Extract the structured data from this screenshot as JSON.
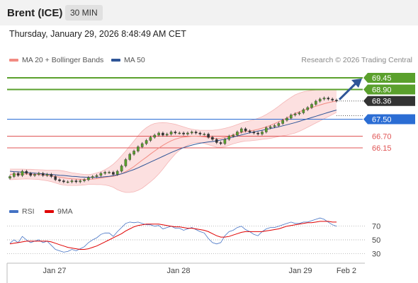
{
  "header": {
    "symbol": "Brent (ICE)",
    "timeframe": "30 MIN"
  },
  "datetime": "Thursday, January 29, 2026 8:48:49 AM CET",
  "legend": [
    {
      "label": "MA 20 + Bollinger Bands",
      "color": "#f28b82"
    },
    {
      "label": "MA 50",
      "color": "#2f5597"
    }
  ],
  "attribution": "Research © 2026 Trading Central",
  "rsi_legend": [
    {
      "label": "RSI",
      "color": "#4472c4"
    },
    {
      "label": "9MA",
      "color": "#e00000"
    }
  ],
  "colors": {
    "resistance": "#5aa02c",
    "pivot": "#2b6dd4",
    "support": "#e05555",
    "last": "#333333",
    "arrow": "#2f5597"
  },
  "chart_data": [
    {
      "type": "candlestick",
      "title": "Brent (ICE)",
      "x_tick_labels": [
        "Jan 27",
        "Jan 28",
        "Jan 29",
        "Feb 2"
      ],
      "ylim": [
        63.55,
        69.95
      ],
      "close_values": [
        64.8,
        64.95,
        64.85,
        65.05,
        64.95,
        64.85,
        64.9,
        64.95,
        64.85,
        64.9,
        64.8,
        64.65,
        64.6,
        64.55,
        64.55,
        64.6,
        64.55,
        64.6,
        64.65,
        64.75,
        64.8,
        64.85,
        64.95,
        65.0,
        65.0,
        64.9,
        65.05,
        65.3,
        65.6,
        65.85,
        66.0,
        66.2,
        66.35,
        66.5,
        66.65,
        66.75,
        66.85,
        66.75,
        66.8,
        66.9,
        66.85,
        66.85,
        66.8,
        66.85,
        66.9,
        66.85,
        66.8,
        66.8,
        66.65,
        66.55,
        66.4,
        66.35,
        66.55,
        66.7,
        66.75,
        66.9,
        67.05,
        66.95,
        66.9,
        66.85,
        66.8,
        66.9,
        67.1,
        67.15,
        67.2,
        67.3,
        67.45,
        67.55,
        67.7,
        67.75,
        67.8,
        67.95,
        68.05,
        68.2,
        68.35,
        68.45,
        68.5,
        68.45,
        68.4,
        68.36
      ],
      "ma20_values": [
        64.9,
        64.91,
        64.91,
        64.92,
        64.92,
        64.91,
        64.9,
        64.89,
        64.87,
        64.85,
        64.83,
        64.8,
        64.77,
        64.74,
        64.71,
        64.69,
        64.68,
        64.67,
        64.66,
        64.67,
        64.68,
        64.7,
        64.73,
        64.76,
        64.79,
        64.81,
        64.86,
        64.93,
        65.03,
        65.14,
        65.27,
        65.42,
        65.57,
        65.71,
        65.86,
        66.0,
        66.14,
        66.27,
        66.38,
        66.48,
        66.56,
        66.62,
        66.66,
        66.68,
        66.7,
        66.7,
        66.69,
        66.67,
        66.64,
        66.61,
        66.59,
        66.6,
        66.64,
        66.7,
        66.76,
        66.82,
        66.88,
        66.92,
        66.95,
        66.98,
        67.02,
        67.08,
        67.14,
        67.21,
        67.29,
        67.38,
        67.47,
        67.56,
        67.66,
        67.77,
        67.85,
        67.92,
        67.99,
        68.05,
        68.11,
        68.17,
        68.23,
        68.28,
        68.32,
        68.36
      ],
      "bb_upper_values": [
        65.15,
        65.15,
        65.15,
        65.15,
        65.14,
        65.14,
        65.13,
        65.12,
        65.11,
        65.1,
        65.1,
        65.1,
        65.09,
        65.06,
        65.02,
        64.98,
        64.95,
        64.92,
        64.9,
        64.89,
        64.92,
        64.97,
        65.03,
        65.12,
        65.24,
        65.38,
        65.56,
        65.78,
        66.0,
        66.24,
        66.48,
        66.72,
        66.94,
        67.1,
        67.22,
        67.3,
        67.33,
        67.34,
        67.33,
        67.3,
        67.26,
        67.2,
        67.14,
        67.08,
        67.03,
        67.0,
        66.98,
        66.98,
        66.98,
        66.98,
        67.0,
        67.03,
        67.07,
        67.12,
        67.18,
        67.25,
        67.32,
        67.38,
        67.43,
        67.48,
        67.54,
        67.62,
        67.72,
        67.84,
        67.97,
        68.11,
        68.26,
        68.4,
        68.53,
        68.65,
        68.73,
        68.79,
        68.83,
        68.86,
        68.88,
        68.9,
        68.91,
        68.91,
        68.9,
        68.89
      ],
      "bb_lower_values": [
        64.65,
        64.66,
        64.67,
        64.68,
        64.69,
        64.68,
        64.67,
        64.66,
        64.63,
        64.6,
        64.56,
        64.5,
        64.44,
        64.4,
        64.38,
        64.38,
        64.38,
        64.39,
        64.4,
        64.43,
        64.43,
        64.42,
        64.42,
        64.4,
        64.36,
        64.29,
        64.18,
        64.1,
        64.05,
        64.05,
        64.08,
        64.15,
        64.25,
        64.4,
        64.55,
        64.72,
        64.92,
        65.15,
        65.4,
        65.64,
        65.86,
        66.04,
        66.18,
        66.28,
        66.36,
        66.4,
        66.4,
        66.36,
        66.3,
        66.24,
        66.18,
        66.17,
        66.2,
        66.27,
        66.34,
        66.39,
        66.44,
        66.47,
        66.48,
        66.5,
        66.52,
        66.55,
        66.57,
        66.6,
        66.64,
        66.68,
        66.72,
        66.75,
        66.8,
        66.85,
        66.93,
        67.02,
        67.12,
        67.22,
        67.32,
        67.42,
        67.52,
        67.62,
        67.72,
        67.82
      ],
      "ma50_values": [
        65.05,
        65.03,
        65.02,
        65.0,
        64.99,
        64.97,
        64.96,
        64.94,
        64.93,
        64.91,
        64.9,
        64.88,
        64.86,
        64.85,
        64.83,
        64.81,
        64.8,
        64.78,
        64.77,
        64.76,
        64.76,
        64.76,
        64.77,
        64.79,
        64.81,
        64.84,
        64.88,
        64.93,
        64.99,
        65.06,
        65.13,
        65.21,
        65.3,
        65.39,
        65.48,
        65.57,
        65.66,
        65.75,
        65.84,
        65.93,
        66.01,
        66.09,
        66.16,
        66.22,
        66.28,
        66.33,
        66.37,
        66.4,
        66.43,
        66.45,
        66.48,
        66.52,
        66.56,
        66.61,
        66.66,
        66.71,
        66.76,
        66.81,
        66.86,
        66.9,
        66.94,
        66.98,
        67.02,
        67.06,
        67.1,
        67.14,
        67.19,
        67.24,
        67.29,
        67.34,
        67.4,
        67.46,
        67.52,
        67.58,
        67.64,
        67.7,
        67.76,
        67.82,
        67.88,
        67.93
      ],
      "levels": [
        {
          "label": "69.45",
          "value": 69.45,
          "kind": "resistance"
        },
        {
          "label": "68.90",
          "value": 68.9,
          "kind": "resistance"
        },
        {
          "label": "68.36",
          "value": 68.36,
          "kind": "last"
        },
        {
          "label": "67.50",
          "value": 67.5,
          "kind": "pivot"
        },
        {
          "label": "66.70",
          "value": 66.7,
          "kind": "support"
        },
        {
          "label": "66.15",
          "value": 66.15,
          "kind": "support"
        }
      ],
      "forecast_arrow": {
        "from": 68.36,
        "to": 69.45
      }
    },
    {
      "type": "line",
      "y_ticks": [
        70,
        50,
        30
      ],
      "ylim": [
        20,
        80
      ],
      "series": [
        {
          "name": "RSI",
          "values": [
            45,
            50,
            46,
            55,
            50,
            46,
            48,
            50,
            46,
            48,
            42,
            36,
            34,
            32,
            33,
            36,
            34,
            37,
            40,
            46,
            50,
            53,
            58,
            60,
            60,
            55,
            62,
            68,
            74,
            76,
            75,
            76,
            74,
            72,
            72,
            70,
            71,
            66,
            68,
            70,
            67,
            67,
            64,
            66,
            68,
            65,
            62,
            60,
            52,
            46,
            44,
            46,
            56,
            62,
            64,
            68,
            70,
            65,
            62,
            58,
            56,
            62,
            66,
            68,
            68,
            70,
            72,
            74,
            76,
            74,
            74,
            76,
            76,
            78,
            80,
            82,
            80,
            76,
            72,
            70
          ]
        },
        {
          "name": "9MA",
          "values": [
            44,
            45,
            46,
            47,
            48,
            48,
            48,
            48,
            48,
            48,
            47,
            45,
            43,
            41,
            39,
            38,
            37,
            36,
            36,
            37,
            39,
            41,
            44,
            47,
            50,
            53,
            56,
            59,
            63,
            66,
            69,
            71,
            72,
            73,
            73,
            73,
            73,
            72,
            71,
            70,
            69,
            69,
            68,
            67,
            67,
            66,
            65,
            64,
            62,
            59,
            56,
            54,
            54,
            55,
            57,
            59,
            61,
            62,
            62,
            62,
            62,
            62,
            63,
            64,
            65,
            66,
            68,
            70,
            71,
            72,
            73,
            74,
            75,
            75,
            76,
            77,
            77,
            77,
            76,
            76
          ]
        }
      ]
    }
  ]
}
